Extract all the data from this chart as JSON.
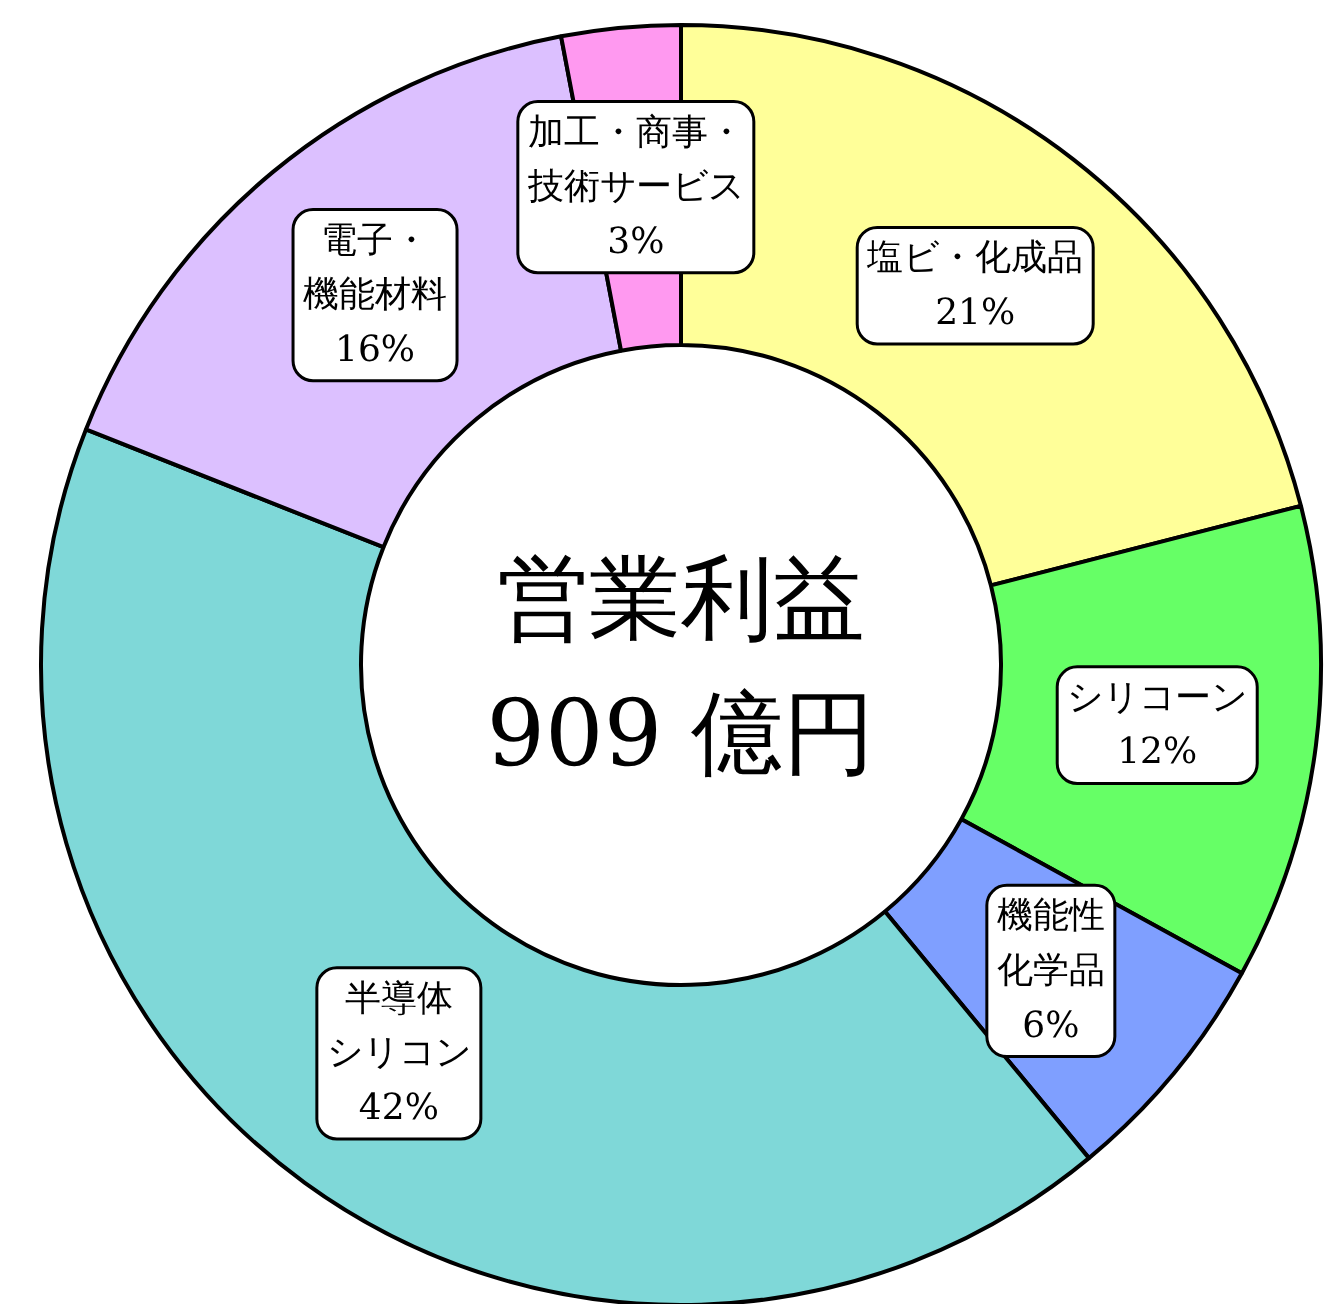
{
  "chart_data": {
    "type": "donut",
    "title": "営業利益\n909 億円",
    "categories": [
      "塩ビ・化成品",
      "シリコーン",
      "機能性化学品",
      "半導体シリコン",
      "電子・機能材料",
      "加工・商事・技術サービス"
    ],
    "values": [
      21,
      12,
      6,
      42,
      16,
      3
    ],
    "value_labels": [
      "21%",
      "12%",
      "6%",
      "42%",
      "16%",
      "3%"
    ],
    "colors": [
      "#ffff99",
      "#66ff66",
      "#7f9fff",
      "#7fd8d8",
      "#dcc0ff",
      "#ff99f0"
    ]
  }
}
